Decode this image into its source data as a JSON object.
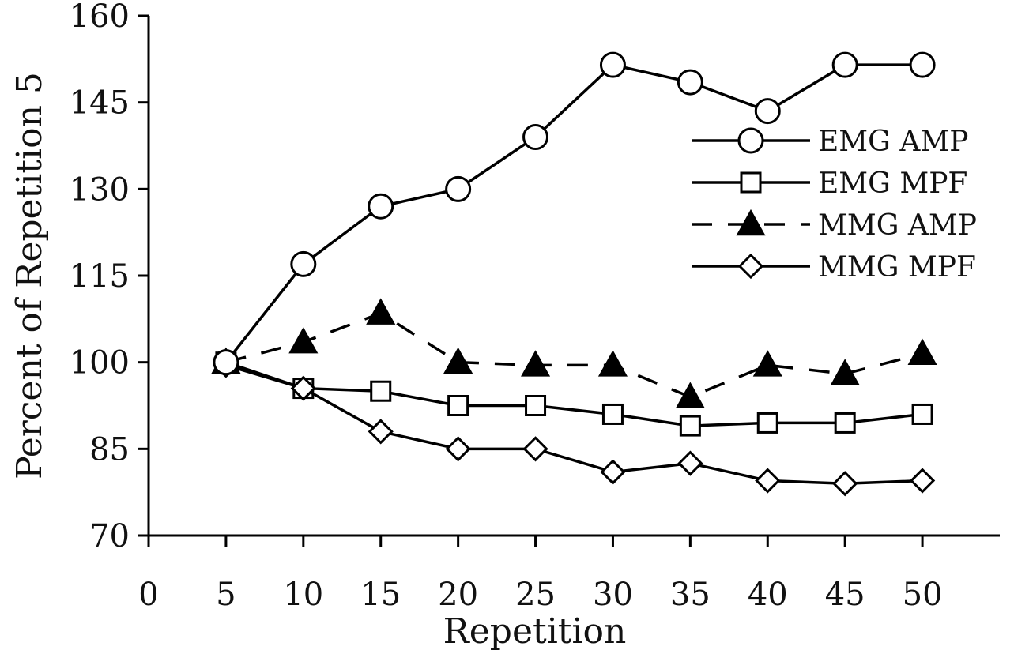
{
  "chart_data": {
    "type": "line",
    "title": "",
    "xlabel": "Repetition",
    "ylabel": "Percent of Repetition 5",
    "xlim": [
      0,
      55
    ],
    "ylim": [
      70,
      160
    ],
    "x_ticks": [
      0,
      5,
      10,
      15,
      20,
      25,
      30,
      35,
      40,
      45,
      50
    ],
    "y_ticks": [
      70,
      85,
      100,
      115,
      130,
      145,
      160
    ],
    "grid": false,
    "legend_position": "right",
    "x": [
      5,
      10,
      15,
      20,
      25,
      30,
      35,
      40,
      45,
      50
    ],
    "series": [
      {
        "name": "EMG AMP",
        "marker": "open-circle",
        "line": "solid",
        "values": [
          100,
          117,
          127,
          130,
          139,
          151.5,
          148.5,
          143.5,
          151.5,
          151.5
        ]
      },
      {
        "name": "EMG MPF",
        "marker": "open-square",
        "line": "solid",
        "values": [
          100,
          95.5,
          95,
          92.5,
          92.5,
          91,
          89,
          89.5,
          89.5,
          91
        ]
      },
      {
        "name": "MMG AMP",
        "marker": "filled-triangle",
        "line": "dashed",
        "values": [
          100,
          103.5,
          108.5,
          100,
          99.5,
          99.5,
          94,
          99.5,
          98,
          101.5
        ]
      },
      {
        "name": "MMG MPF",
        "marker": "open-diamond",
        "line": "solid",
        "values": [
          99.5,
          95.5,
          88,
          85,
          85,
          81,
          82.5,
          79.5,
          79,
          79.5
        ]
      }
    ]
  }
}
